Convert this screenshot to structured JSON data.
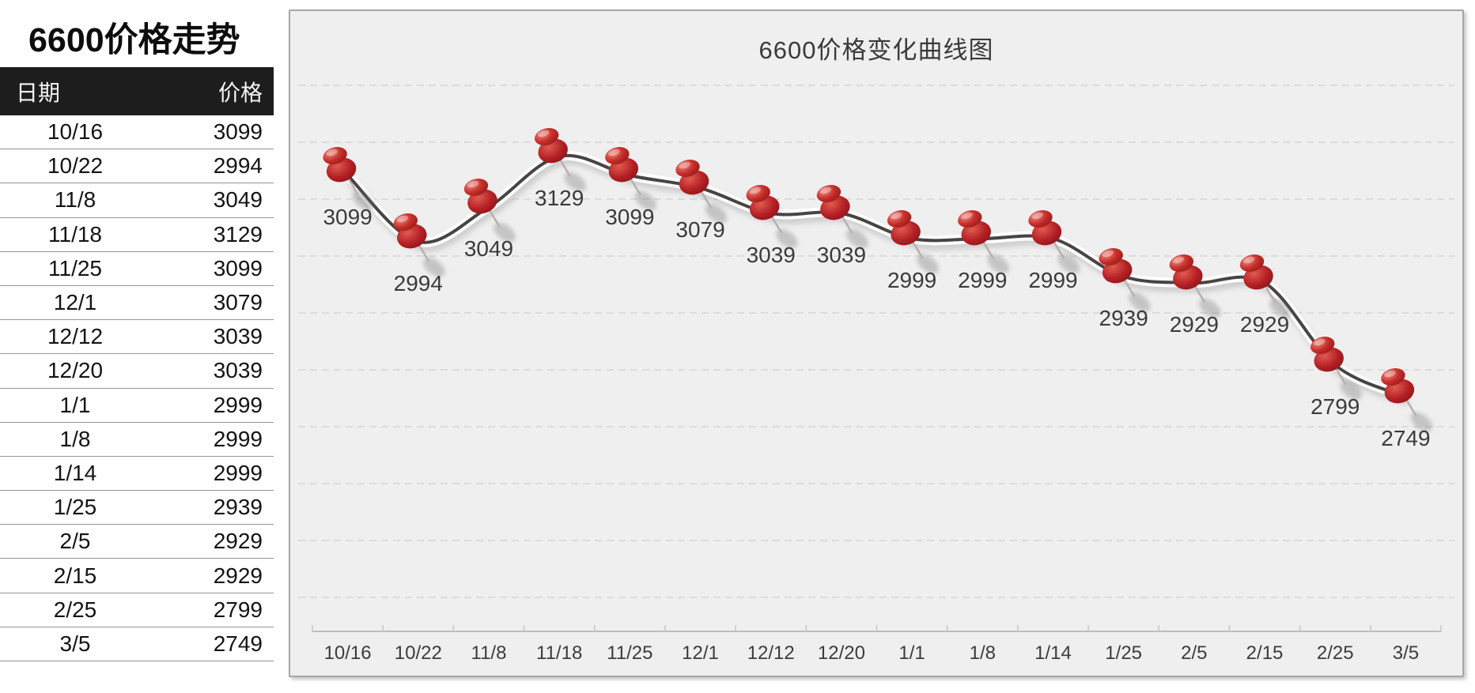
{
  "table": {
    "title": "6600价格走势",
    "columns": [
      "日期",
      "价格"
    ],
    "rows": [
      [
        "10/16",
        "3099"
      ],
      [
        "10/22",
        "2994"
      ],
      [
        "11/8",
        "3049"
      ],
      [
        "11/18",
        "3129"
      ],
      [
        "11/25",
        "3099"
      ],
      [
        "12/1",
        "3079"
      ],
      [
        "12/12",
        "3039"
      ],
      [
        "12/20",
        "3039"
      ],
      [
        "1/1",
        "2999"
      ],
      [
        "1/8",
        "2999"
      ],
      [
        "1/14",
        "2999"
      ],
      [
        "1/25",
        "2939"
      ],
      [
        "2/5",
        "2929"
      ],
      [
        "2/15",
        "2929"
      ],
      [
        "2/25",
        "2799"
      ],
      [
        "3/5",
        "2749"
      ]
    ]
  },
  "chart": {
    "title": "6600价格变化曲线图"
  },
  "chart_data": {
    "type": "line",
    "title": "6600价格变化曲线图",
    "categories": [
      "10/16",
      "10/22",
      "11/8",
      "11/18",
      "11/25",
      "12/1",
      "12/12",
      "12/20",
      "1/1",
      "1/8",
      "1/14",
      "1/25",
      "2/5",
      "2/15",
      "2/25",
      "3/5"
    ],
    "values": [
      3099,
      2994,
      3049,
      3129,
      3099,
      3079,
      3039,
      3039,
      2999,
      2999,
      2999,
      2939,
      2929,
      2929,
      2799,
      2749
    ],
    "series_name": "价格",
    "xlabel": "",
    "ylabel": "",
    "ylim": [
      2400,
      3250
    ],
    "y_axis_labels": "none",
    "grid": "horizontal-dashed",
    "legend": "none",
    "line_style": "smooth",
    "marker": "red-pushpin",
    "data_labels": "below-points"
  },
  "colors": {
    "plot_background": "#efeff0",
    "line": "#474442",
    "line_halo": "#ffffff",
    "gridline": "#d6d5d4",
    "axis": "#bdbdbd",
    "pin_red": "#b42025",
    "pin_red_light": "#e05a50",
    "label_text": "#3b3b3b",
    "header_bg": "#1e1d1d",
    "header_text": "#f5f5f5"
  }
}
